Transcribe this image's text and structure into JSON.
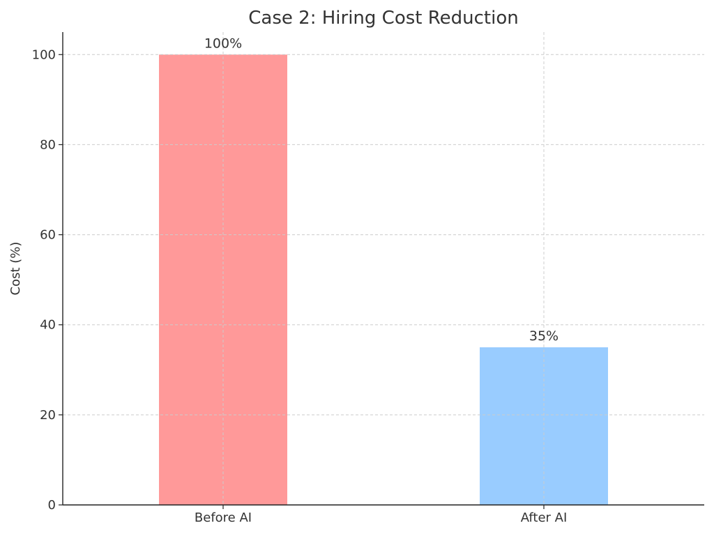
{
  "chart_data": {
    "type": "bar",
    "title": "Case 2: Hiring Cost Reduction",
    "xlabel": "",
    "ylabel": "Cost (%)",
    "categories": [
      "Before AI",
      "After AI"
    ],
    "values": [
      100,
      35
    ],
    "data_labels": [
      "100%",
      "35%"
    ],
    "colors": [
      "#ff9999",
      "#99ccff"
    ],
    "ylim": [
      0,
      105
    ],
    "yticks": [
      0,
      20,
      40,
      60,
      80,
      100
    ],
    "ytick_labels": [
      "0",
      "20",
      "40",
      "60",
      "80",
      "100"
    ],
    "grid": true,
    "legend": "none"
  }
}
